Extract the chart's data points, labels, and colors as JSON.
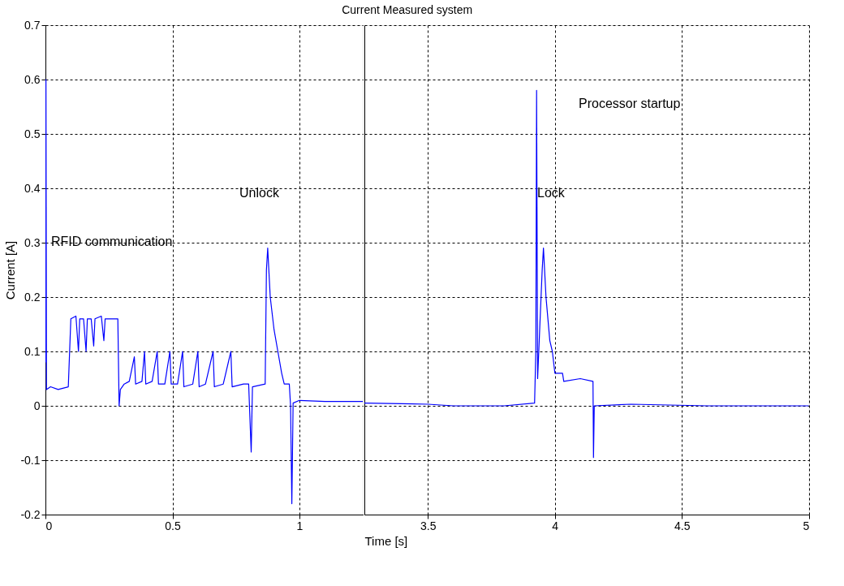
{
  "chart_data": [
    {
      "type": "line",
      "ylabel": "Current [A]",
      "xlim": [
        0,
        1.25
      ],
      "xticks": [
        0,
        0.5,
        1
      ],
      "ylim": [
        -0.2,
        0.7
      ],
      "yticks": [
        -0.2,
        -0.1,
        0,
        0.1,
        0.2,
        0.3,
        0.4,
        0.5,
        0.6,
        0.7
      ],
      "grid": true,
      "line_style": "solid",
      "marker": "none",
      "annotations": [
        "RFID communication",
        "Unlock"
      ],
      "series": [
        {
          "color": "#0000ff",
          "x": [
            0,
            0.002,
            0.004,
            0.02,
            0.05,
            0.09,
            0.1,
            0.12,
            0.13,
            0.135,
            0.15,
            0.16,
            0.165,
            0.18,
            0.19,
            0.195,
            0.22,
            0.23,
            0.235,
            0.26,
            0.285,
            0.29,
            0.295,
            0.31,
            0.33,
            0.35,
            0.355,
            0.38,
            0.39,
            0.395,
            0.42,
            0.44,
            0.445,
            0.47,
            0.49,
            0.495,
            0.52,
            0.54,
            0.545,
            0.58,
            0.6,
            0.605,
            0.63,
            0.66,
            0.665,
            0.7,
            0.73,
            0.735,
            0.78,
            0.8,
            0.81,
            0.815,
            0.865,
            0.87,
            0.875,
            0.885,
            0.9,
            0.915,
            0.93,
            0.94,
            0.96,
            0.965,
            0.97,
            0.975,
            1.0,
            1.1,
            1.25
          ],
          "values": [
            0.08,
            0.6,
            0.03,
            0.035,
            0.03,
            0.035,
            0.16,
            0.165,
            0.1,
            0.16,
            0.16,
            0.1,
            0.16,
            0.16,
            0.11,
            0.16,
            0.165,
            0.12,
            0.16,
            0.16,
            0.16,
            0.0,
            0.03,
            0.04,
            0.045,
            0.09,
            0.04,
            0.045,
            0.1,
            0.04,
            0.045,
            0.1,
            0.04,
            0.04,
            0.1,
            0.04,
            0.04,
            0.1,
            0.035,
            0.04,
            0.1,
            0.035,
            0.04,
            0.1,
            0.035,
            0.04,
            0.1,
            0.035,
            0.04,
            0.04,
            -0.085,
            0.035,
            0.04,
            0.25,
            0.29,
            0.2,
            0.14,
            0.1,
            0.06,
            0.04,
            0.04,
            0.0,
            -0.18,
            0.005,
            0.01,
            0.008,
            0.008
          ]
        }
      ]
    },
    {
      "type": "line",
      "title": "Current Measured system",
      "xlabel": "Time [s]",
      "xlim": [
        3.25,
        5
      ],
      "xticks": [
        3.5,
        4,
        4.5,
        5
      ],
      "ylim": [
        -0.2,
        0.7
      ],
      "yticks": [
        -0.2,
        -0.1,
        0,
        0.1,
        0.2,
        0.3,
        0.4,
        0.5,
        0.6,
        0.7
      ],
      "grid": true,
      "tick_labels": "x",
      "line_style": "solid",
      "marker": "none",
      "annotations": [
        "Lock",
        "Processor startup"
      ],
      "series": [
        {
          "color": "#0000ff",
          "x": [
            3.25,
            3.5,
            3.6,
            3.8,
            3.92,
            3.925,
            3.928,
            3.932,
            3.95,
            3.955,
            3.965,
            3.98,
            3.99,
            4.0,
            4.03,
            4.035,
            4.1,
            4.15,
            4.152,
            4.155,
            4.3,
            4.6,
            5.0
          ],
          "values": [
            0.005,
            0.003,
            0.0,
            0.0,
            0.005,
            0.1,
            0.58,
            0.05,
            0.25,
            0.29,
            0.2,
            0.12,
            0.1,
            0.06,
            0.06,
            0.045,
            0.05,
            0.045,
            -0.095,
            0.0,
            0.003,
            0.0,
            0.0
          ]
        }
      ]
    }
  ]
}
